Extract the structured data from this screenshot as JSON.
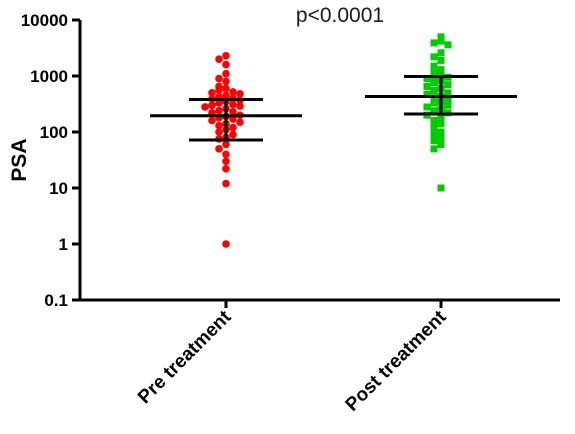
{
  "chart_data": {
    "type": "scatter",
    "title": "p<0.0001",
    "ylabel": "PSA",
    "xlabel": "",
    "y_scale": "log",
    "ylim": [
      0.1,
      10000
    ],
    "y_ticks": [
      "0.1",
      "1",
      "10",
      "100",
      "1000",
      "10000"
    ],
    "categories": [
      "Pre treatment",
      "Post treatment"
    ],
    "series": [
      {
        "category": "Pre treatment",
        "color": "#ff0000",
        "marker": "circle",
        "center": 195,
        "error_low": 72,
        "error_high": 380,
        "values": [
          2300,
          2000,
          1600,
          1100,
          900,
          800,
          650,
          600,
          560,
          520,
          500,
          480,
          450,
          420,
          400,
          390,
          370,
          350,
          330,
          310,
          300,
          290,
          280,
          260,
          240,
          230,
          220,
          200,
          190,
          180,
          170,
          160,
          150,
          140,
          130,
          120,
          110,
          100,
          90,
          80,
          75,
          60,
          50,
          40,
          30,
          22,
          12,
          1
        ]
      },
      {
        "category": "Post treatment",
        "color": "#00cc00",
        "marker": "square",
        "center": 430,
        "error_low": 210,
        "error_high": 980,
        "values": [
          5000,
          4200,
          3900,
          3600,
          2600,
          2200,
          1900,
          1500,
          1300,
          1200,
          1100,
          1000,
          950,
          900,
          820,
          760,
          700,
          650,
          600,
          550,
          500,
          470,
          440,
          410,
          380,
          350,
          330,
          300,
          280,
          260,
          240,
          220,
          200,
          180,
          160,
          140,
          120,
          100,
          90,
          80,
          70,
          60,
          50,
          10
        ]
      }
    ],
    "grid": false,
    "legend": "none"
  }
}
